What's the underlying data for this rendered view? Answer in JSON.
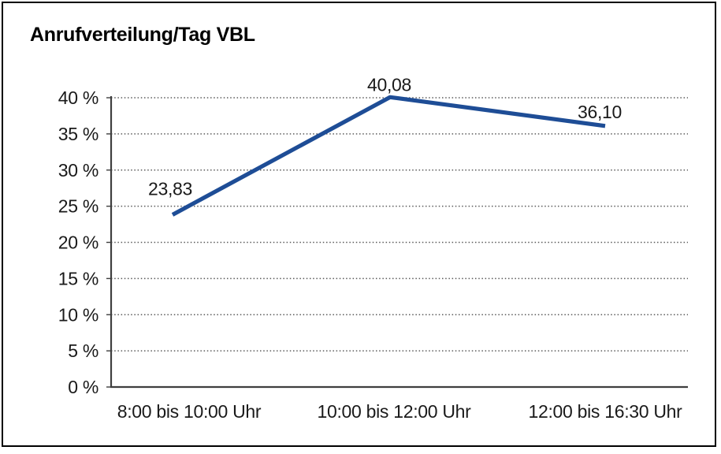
{
  "page": {
    "background": "#ffffff",
    "frame_border_color": "#000000"
  },
  "chart_data": {
    "type": "line",
    "title": "Anrufverteilung/Tag VBL",
    "categories": [
      "8:00 bis 10:00 Uhr",
      "10:00 bis 12:00 Uhr",
      "12:00 bis 16:30 Uhr"
    ],
    "values": [
      23.83,
      40.08,
      36.1
    ],
    "data_labels": [
      "23,83",
      "40,08",
      "36,10"
    ],
    "xlabel": "",
    "ylabel": "",
    "ylim": [
      0,
      40
    ],
    "yticks": [
      0,
      5,
      10,
      15,
      20,
      25,
      30,
      35,
      40
    ],
    "ytick_labels": [
      "0 %",
      "5 %",
      "10 %",
      "15 %",
      "20 %",
      "25 %",
      "30 %",
      "35 %",
      "40 %"
    ],
    "grid": "horizontal dotted",
    "legend": "none",
    "line_color": "#1e4d96",
    "axis_color": "#3f3f3f",
    "grid_color": "#5a5a5a",
    "text_color": "#1a1a1a"
  }
}
